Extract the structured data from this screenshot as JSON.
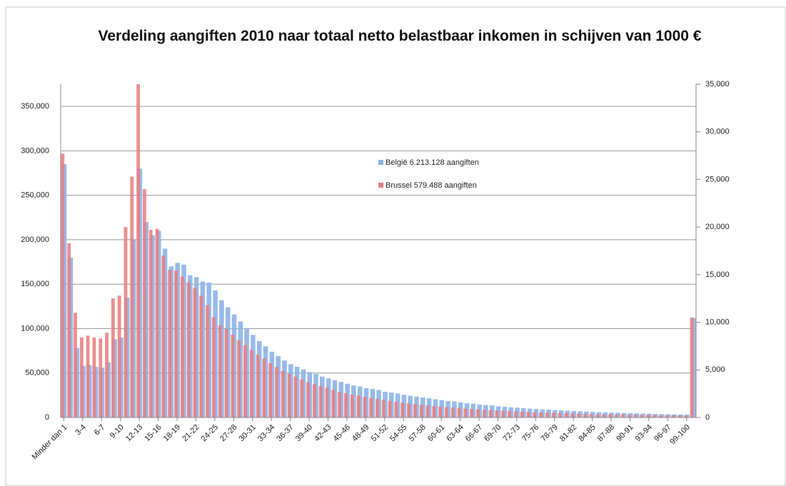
{
  "chart_data": {
    "type": "bar",
    "title": "Verdeling aangiften 2010 naar totaal netto belastbaar inkomen in schijven van 1000 €",
    "categories": [
      "Minder dan 1",
      null,
      null,
      "3-4",
      null,
      null,
      "6-7",
      null,
      null,
      "9-10",
      null,
      null,
      "12-13",
      null,
      null,
      "15-16",
      null,
      null,
      "18-19",
      null,
      null,
      "21-22",
      null,
      null,
      "24-25",
      null,
      null,
      "27-28",
      null,
      null,
      "30-31",
      null,
      null,
      "33-34",
      null,
      null,
      "36-37",
      null,
      null,
      "39-40",
      null,
      null,
      "42-43",
      null,
      null,
      "45-46",
      null,
      null,
      "48-49",
      null,
      null,
      "51-52",
      null,
      null,
      "54-55",
      null,
      null,
      "57-58",
      null,
      null,
      "60-61",
      null,
      null,
      "63-64",
      null,
      null,
      "66-67",
      null,
      null,
      "69-70",
      null,
      null,
      "72-73",
      null,
      null,
      "75-76",
      null,
      null,
      "78-79",
      null,
      null,
      "81-82",
      null,
      null,
      "84-85",
      null,
      null,
      "87-88",
      null,
      null,
      "90-91",
      null,
      null,
      "93-94",
      null,
      null,
      "96-97",
      null,
      null,
      "99-100",
      null
    ],
    "series": [
      {
        "name": "België 6.213.128 aangiften",
        "color": "#8db3e8",
        "axis": "y",
        "values": [
          285000,
          180000,
          78000,
          58000,
          59000,
          57000,
          56000,
          62000,
          88000,
          90000,
          135000,
          200000,
          280000,
          220000,
          205000,
          210000,
          190000,
          170000,
          174000,
          172000,
          160000,
          158000,
          153000,
          152000,
          143000,
          132000,
          124000,
          116000,
          108000,
          100000,
          93000,
          86000,
          80000,
          74000,
          69000,
          64000,
          60000,
          57000,
          54000,
          51000,
          49000,
          46000,
          44000,
          42000,
          40000,
          38000,
          36000,
          35000,
          33000,
          32000,
          31000,
          29000,
          28000,
          27000,
          25500,
          24500,
          23500,
          22500,
          21500,
          20500,
          19500,
          18500,
          18000,
          17000,
          16000,
          15500,
          14500,
          14000,
          13500,
          12500,
          12000,
          11500,
          11000,
          10500,
          10000,
          9500,
          9000,
          8700,
          8300,
          8000,
          7600,
          7300,
          7000,
          6600,
          6300,
          6000,
          5800,
          5500,
          5300,
          5000,
          4800,
          4600,
          4400,
          4200,
          4000,
          3800,
          3600,
          3500,
          3300,
          3200,
          112000
        ]
      },
      {
        "name": "Brussel 579.488 aangiften",
        "color": "#e97d7d",
        "axis": "y2",
        "values": [
          27700,
          18300,
          11000,
          8400,
          8600,
          8400,
          8300,
          8900,
          12500,
          12800,
          20000,
          25300,
          35000,
          24000,
          19700,
          19800,
          17000,
          15500,
          15400,
          14800,
          14200,
          13600,
          12800,
          11800,
          10500,
          9700,
          9300,
          8700,
          8100,
          7600,
          7100,
          6600,
          6200,
          5700,
          5300,
          4900,
          4600,
          4300,
          4000,
          3700,
          3500,
          3300,
          3100,
          2900,
          2700,
          2550,
          2400,
          2300,
          2150,
          2050,
          1950,
          1850,
          1750,
          1650,
          1550,
          1480,
          1400,
          1330,
          1260,
          1200,
          1140,
          1080,
          1030,
          980,
          930,
          890,
          850,
          810,
          770,
          740,
          700,
          670,
          640,
          610,
          580,
          560,
          530,
          510,
          490,
          470,
          450,
          430,
          410,
          390,
          380,
          360,
          350,
          330,
          320,
          310,
          300,
          290,
          280,
          270,
          260,
          250,
          240,
          230,
          220,
          210,
          10500
        ]
      }
    ],
    "ylim": [
      0,
      375000
    ],
    "yticks": [
      0,
      {
        "value": 50000,
        "label": "50,000"
      },
      {
        "value": 100000,
        "label": "100,000"
      },
      {
        "value": 150000,
        "label": "150,000"
      },
      {
        "value": 200000,
        "label": "200,000"
      },
      {
        "value": 250000,
        "label": "250,000"
      },
      {
        "value": 300000,
        "label": "300,000"
      },
      {
        "value": 350000,
        "label": "350,000"
      }
    ],
    "y2lim": [
      0,
      35000
    ],
    "y2ticks": [
      0,
      {
        "value": 5000,
        "label": "5,000"
      },
      {
        "value": 10000,
        "label": "10,000"
      },
      {
        "value": 15000,
        "label": "15,000"
      },
      {
        "value": 20000,
        "label": "20,000"
      },
      {
        "value": 25000,
        "label": "25,000"
      },
      {
        "value": 30000,
        "label": "30,000"
      },
      {
        "value": 35000,
        "label": "35,000"
      }
    ],
    "grid": true,
    "legend": "center"
  }
}
